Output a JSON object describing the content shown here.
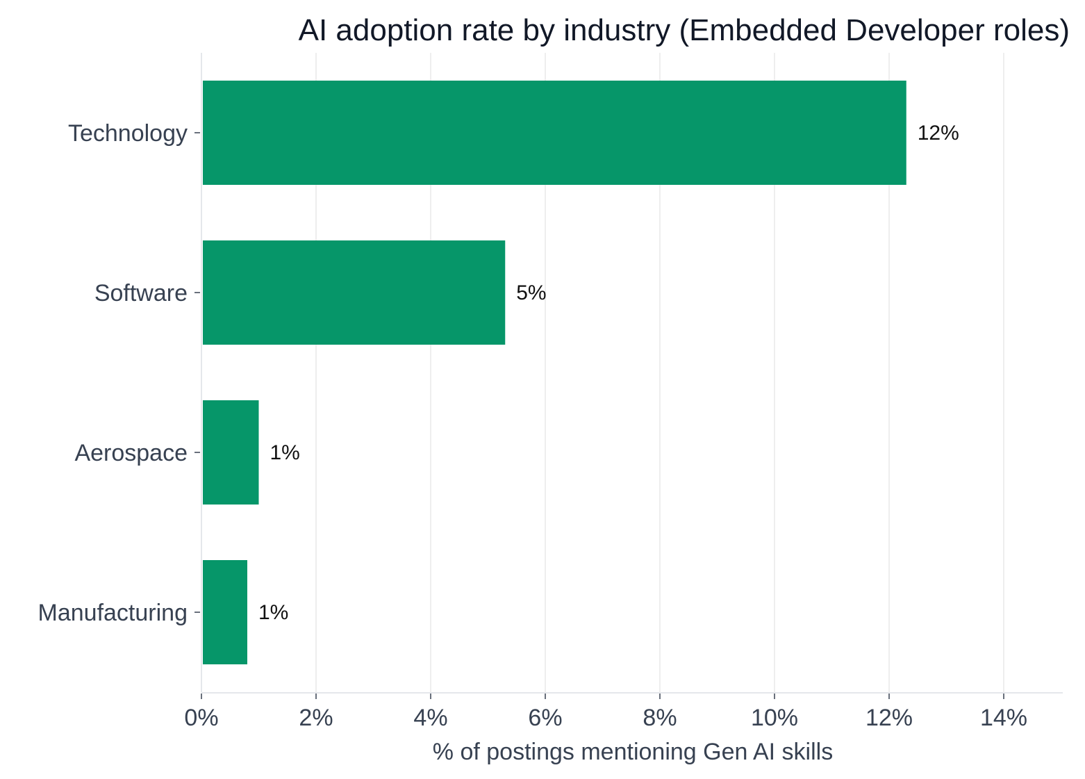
{
  "chart_data": {
    "type": "bar",
    "orientation": "horizontal",
    "title": "AI adoption rate by industry (Embedded Developer roles)",
    "xlabel": "% of postings mentioning Gen AI skills",
    "ylabel": "",
    "categories": [
      "Technology",
      "Software",
      "Aerospace",
      "Manufacturing"
    ],
    "values": [
      12.3,
      5.3,
      1.0,
      0.8
    ],
    "value_labels": [
      "12%",
      "5%",
      "1%",
      "1%"
    ],
    "xlim": [
      0,
      15
    ],
    "x_ticks": [
      0,
      2,
      4,
      6,
      8,
      10,
      12,
      14
    ],
    "x_tick_labels": [
      "0%",
      "2%",
      "4%",
      "6%",
      "8%",
      "10%",
      "12%",
      "14%"
    ],
    "grid": "vertical",
    "legend": "none",
    "bar_color": "#069669"
  }
}
